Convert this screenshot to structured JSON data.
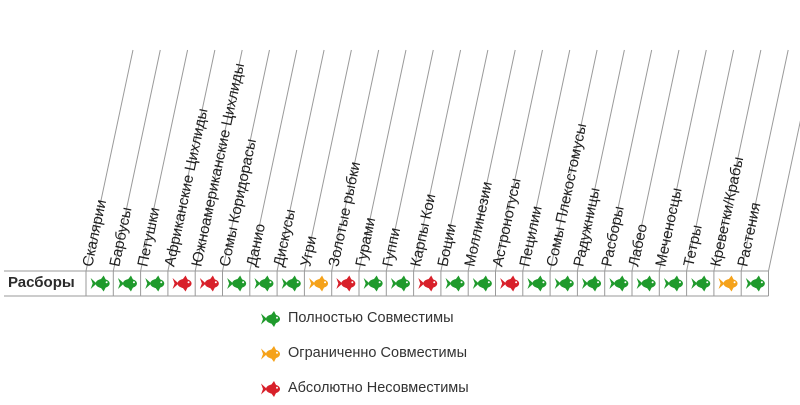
{
  "row_label": "Расборы",
  "columns": [
    {
      "label": "Скалярии",
      "status": "compatible"
    },
    {
      "label": "Барбусы",
      "status": "compatible"
    },
    {
      "label": "Петушки",
      "status": "compatible"
    },
    {
      "label": "Африканские Цихлиды",
      "status": "incompatible"
    },
    {
      "label": "Южноамериканские Цихлиды",
      "status": "incompatible"
    },
    {
      "label": "Сомы Коридорасы",
      "status": "compatible"
    },
    {
      "label": "Данио",
      "status": "compatible"
    },
    {
      "label": "Дискусы",
      "status": "compatible"
    },
    {
      "label": "Угри",
      "status": "limited"
    },
    {
      "label": "Золотые рыбки",
      "status": "incompatible"
    },
    {
      "label": "Гурами",
      "status": "compatible"
    },
    {
      "label": "Гуппи",
      "status": "compatible"
    },
    {
      "label": "Карпы Кои",
      "status": "incompatible"
    },
    {
      "label": "Боции",
      "status": "compatible"
    },
    {
      "label": "Моллинезии",
      "status": "compatible"
    },
    {
      "label": "Астронотусы",
      "status": "incompatible"
    },
    {
      "label": "Пецилии",
      "status": "compatible"
    },
    {
      "label": "Сомы Плекостомусы",
      "status": "compatible"
    },
    {
      "label": "Радужницы",
      "status": "compatible"
    },
    {
      "label": "Расборы",
      "status": "compatible"
    },
    {
      "label": "Лабео",
      "status": "compatible"
    },
    {
      "label": "Меченосцы",
      "status": "compatible"
    },
    {
      "label": "Тетры",
      "status": "compatible"
    },
    {
      "label": "Креветки/Крабы",
      "status": "limited"
    },
    {
      "label": "Растения",
      "status": "compatible"
    }
  ],
  "legend": [
    {
      "key": "compatible",
      "label": "Полностью Совместимы"
    },
    {
      "key": "limited",
      "label": "Ограниченно  Совместимы"
    },
    {
      "key": "incompatible",
      "label": "Абсолютно  Несовместимы"
    }
  ],
  "colors": {
    "compatible": "#1f9a2c",
    "limited": "#f5a21a",
    "incompatible": "#d8202a",
    "grid": "#9a9a9a"
  }
}
